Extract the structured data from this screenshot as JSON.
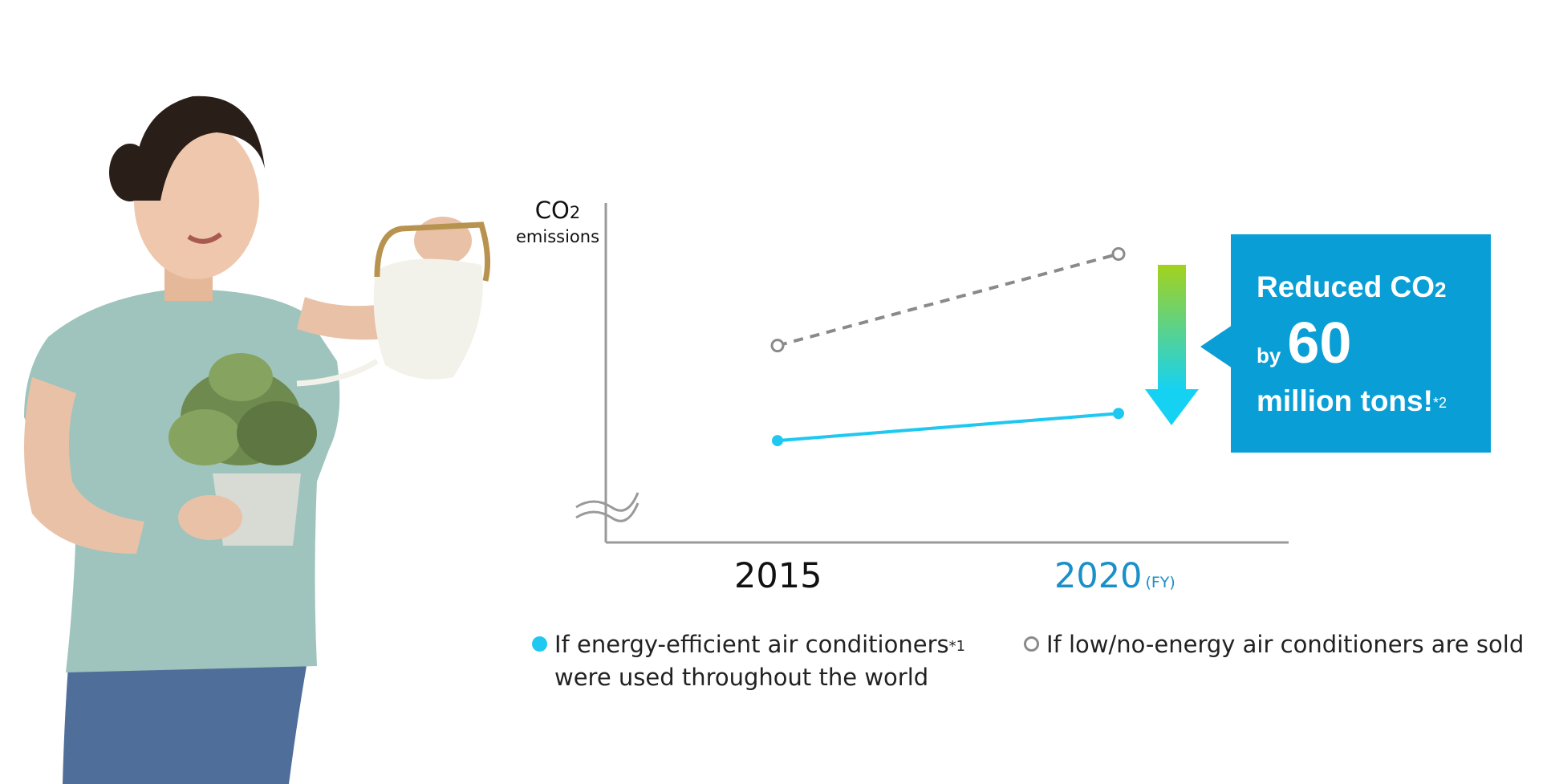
{
  "chart_data": {
    "type": "line",
    "x": [
      "2015",
      "2020"
    ],
    "x_unit_label": "(FY)",
    "y_label": {
      "main": "CO",
      "subscript": "2",
      "sub": "emissions"
    },
    "y_values_shown": false,
    "axis_break": true,
    "series": [
      {
        "name": "If energy-efficient air conditioners*1 were used throughout the world",
        "style": "solid",
        "marker": "filled",
        "color": "#1ec8f0",
        "values": [
          30,
          38
        ]
      },
      {
        "name": "If low/no-energy air conditioners are sold",
        "style": "dashed",
        "marker": "hollow",
        "color": "#8a8a8a",
        "values": [
          58,
          85
        ]
      }
    ],
    "ylim": [
      0,
      100
    ]
  },
  "axis": {
    "year_2015": "2015",
    "year_2020": "2020",
    "fy": "(FY)",
    "co2_main": "CO",
    "co2_sub": "2",
    "emissions": "emissions"
  },
  "legend": {
    "item1_line1": "If energy-efficient air conditioners",
    "item1_note": "*1",
    "item1_line2": "were used throughout the world",
    "item2": "If low/no-energy air conditioners are sold"
  },
  "callout": {
    "line1": "Reduced CO",
    "line1_sub": "2",
    "by": "by",
    "number": "60",
    "line3": "million tons!",
    "note": "*2"
  },
  "colors": {
    "efficient": "#1ec8f0",
    "low_energy": "#8a8a8a",
    "callout": "#0a9ed6",
    "year_2020": "#1a8fc8",
    "arrow_top": "#a4d21c",
    "arrow_bottom": "#16d2f2"
  },
  "photo": {
    "icon": "woman-watering-plant-photo"
  }
}
